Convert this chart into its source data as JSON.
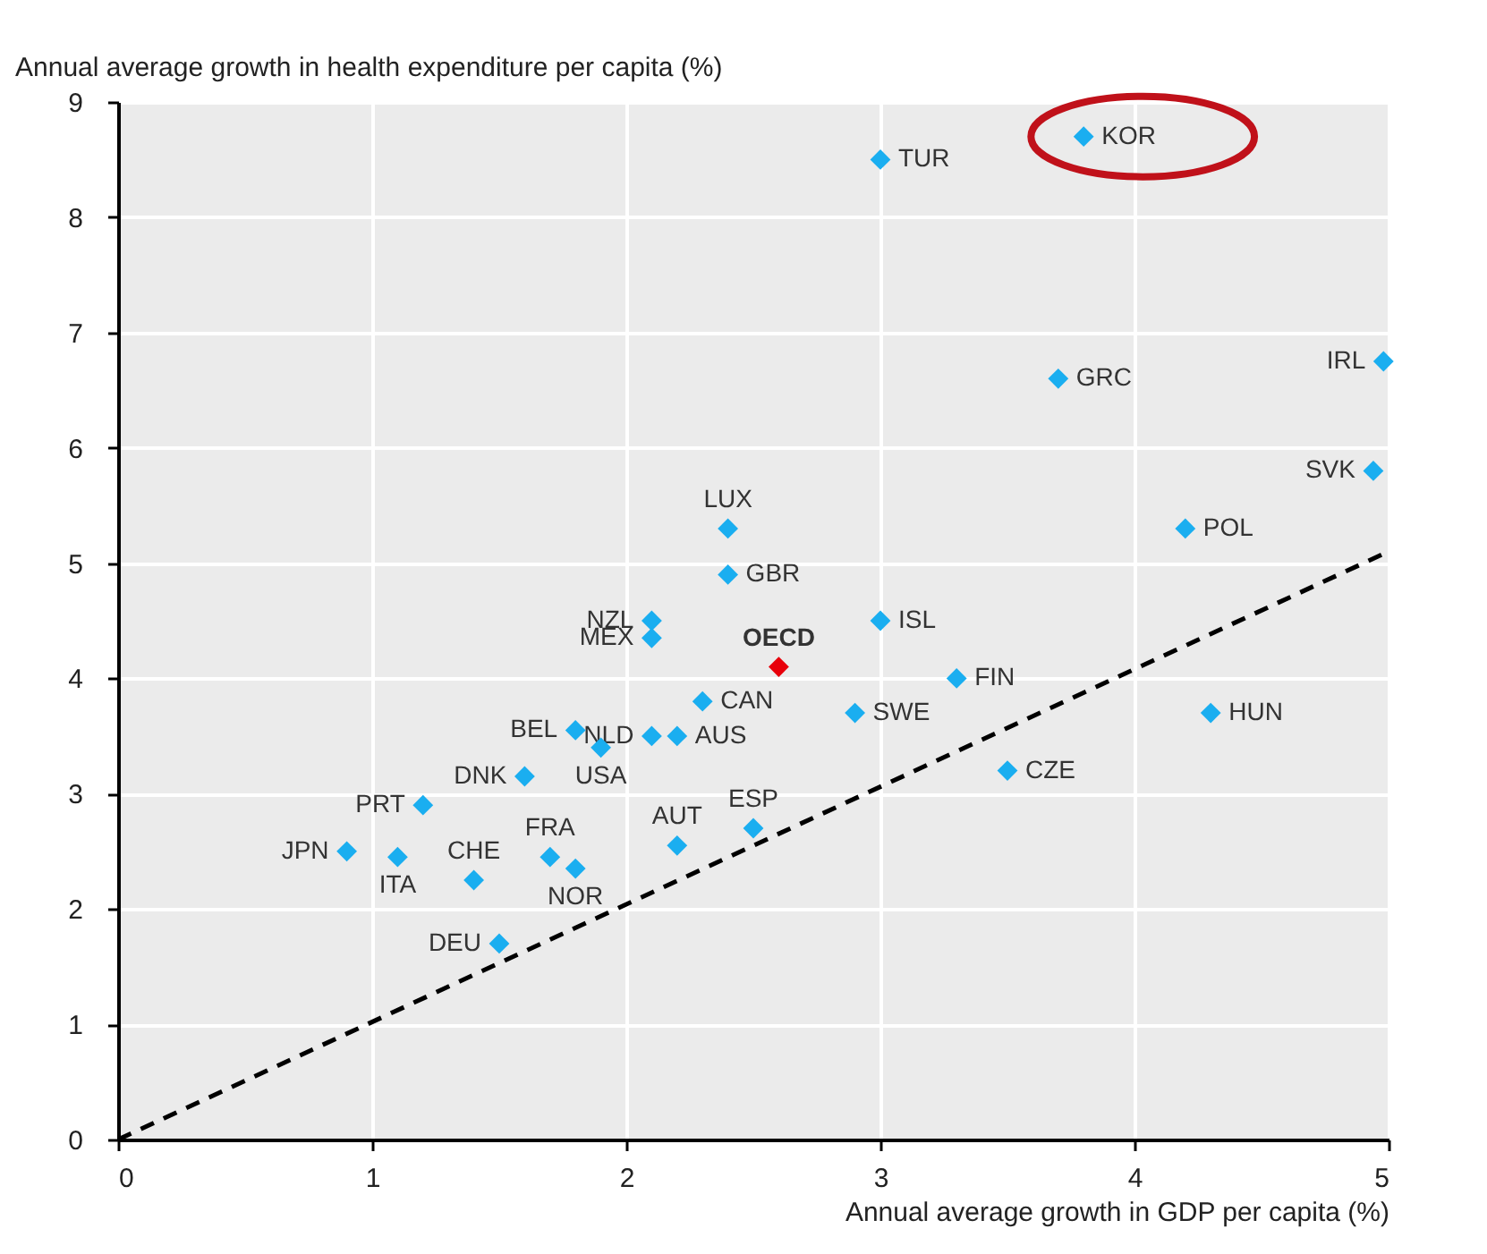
{
  "chart_data": {
    "type": "scatter",
    "xlabel": "Annual average growth in GDP per capita (%)",
    "ylabel": "Annual average growth in health expenditure per capita (%)",
    "xlim": [
      0,
      5
    ],
    "xticks": [
      0,
      1,
      2,
      3,
      4,
      5
    ],
    "ylim": [
      0,
      9
    ],
    "yticks": [
      0,
      1,
      2,
      3,
      4,
      5,
      6,
      7,
      8,
      9
    ],
    "grid": true,
    "marker": "diamond",
    "series": [
      {
        "name": "KOR",
        "color": "#1aaef0",
        "x": [
          3.8
        ],
        "values": [
          8.7
        ]
      },
      {
        "name": "TUR",
        "color": "#1aaef0",
        "x": [
          3.0
        ],
        "values": [
          8.5
        ]
      },
      {
        "name": "GRC",
        "color": "#1aaef0",
        "x": [
          3.7
        ],
        "values": [
          6.6
        ]
      },
      {
        "name": "IRL",
        "color": "#1aaef0",
        "x": [
          4.98
        ],
        "values": [
          6.75
        ]
      },
      {
        "name": "SVK",
        "color": "#1aaef0",
        "x": [
          4.94
        ],
        "values": [
          5.8
        ]
      },
      {
        "name": "POL",
        "color": "#1aaef0",
        "x": [
          4.2
        ],
        "values": [
          5.3
        ]
      },
      {
        "name": "LUX",
        "color": "#1aaef0",
        "x": [
          2.4
        ],
        "values": [
          5.3
        ]
      },
      {
        "name": "GBR",
        "color": "#1aaef0",
        "x": [
          2.4
        ],
        "values": [
          4.9
        ]
      },
      {
        "name": "NZL",
        "color": "#1aaef0",
        "x": [
          2.1
        ],
        "values": [
          4.5
        ]
      },
      {
        "name": "MEX",
        "color": "#1aaef0",
        "x": [
          2.1
        ],
        "values": [
          4.35
        ]
      },
      {
        "name": "OECD",
        "color": "#e8000b",
        "x": [
          2.6
        ],
        "values": [
          4.1
        ]
      },
      {
        "name": "ISL",
        "color": "#1aaef0",
        "x": [
          3.0
        ],
        "values": [
          4.5
        ]
      },
      {
        "name": "FIN",
        "color": "#1aaef0",
        "x": [
          3.3
        ],
        "values": [
          4.0
        ]
      },
      {
        "name": "SWE",
        "color": "#1aaef0",
        "x": [
          2.9
        ],
        "values": [
          3.7
        ]
      },
      {
        "name": "HUN",
        "color": "#1aaef0",
        "x": [
          4.3
        ],
        "values": [
          3.7
        ]
      },
      {
        "name": "CZE",
        "color": "#1aaef0",
        "x": [
          3.5
        ],
        "values": [
          3.2
        ]
      },
      {
        "name": "CAN",
        "color": "#1aaef0",
        "x": [
          2.3
        ],
        "values": [
          3.8
        ]
      },
      {
        "name": "NLD",
        "color": "#1aaef0",
        "x": [
          2.1
        ],
        "values": [
          3.5
        ]
      },
      {
        "name": "AUS",
        "color": "#1aaef0",
        "x": [
          2.2
        ],
        "values": [
          3.5
        ]
      },
      {
        "name": "BEL",
        "color": "#1aaef0",
        "x": [
          1.8
        ],
        "values": [
          3.55
        ]
      },
      {
        "name": "USA",
        "color": "#1aaef0",
        "x": [
          1.9
        ],
        "values": [
          3.4
        ]
      },
      {
        "name": "DNK",
        "color": "#1aaef0",
        "x": [
          1.6
        ],
        "values": [
          3.15
        ]
      },
      {
        "name": "PRT",
        "color": "#1aaef0",
        "x": [
          1.2
        ],
        "values": [
          2.9
        ]
      },
      {
        "name": "JPN",
        "color": "#1aaef0",
        "x": [
          0.9
        ],
        "values": [
          2.5
        ]
      },
      {
        "name": "ITA",
        "color": "#1aaef0",
        "x": [
          1.1
        ],
        "values": [
          2.45
        ]
      },
      {
        "name": "CHE",
        "color": "#1aaef0",
        "x": [
          1.4
        ],
        "values": [
          2.25
        ]
      },
      {
        "name": "FRA",
        "color": "#1aaef0",
        "x": [
          1.7
        ],
        "values": [
          2.45
        ]
      },
      {
        "name": "NOR",
        "color": "#1aaef0",
        "x": [
          1.8
        ],
        "values": [
          2.35
        ]
      },
      {
        "name": "AUT",
        "color": "#1aaef0",
        "x": [
          2.2
        ],
        "values": [
          2.55
        ]
      },
      {
        "name": "ESP",
        "color": "#1aaef0",
        "x": [
          2.5
        ],
        "values": [
          2.7
        ]
      },
      {
        "name": "DEU",
        "color": "#1aaef0",
        "x": [
          1.5
        ],
        "values": [
          1.7
        ]
      },
      {
        "type": "line",
        "color": "#000000",
        "line_style": "dashed",
        "marker": "none",
        "x": [
          0,
          5
        ],
        "values": [
          0,
          5.1
        ]
      }
    ]
  }
}
